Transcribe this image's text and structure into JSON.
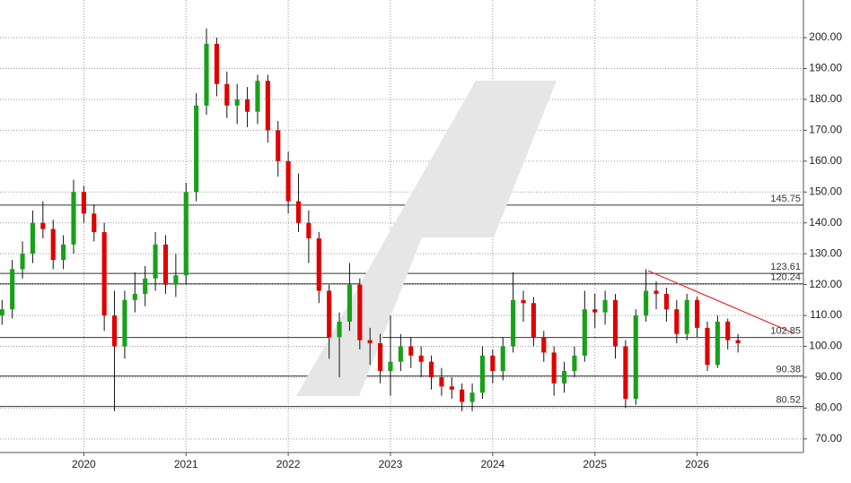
{
  "chart_data": {
    "type": "candlestick",
    "xlim": [
      2019.18,
      2027.04
    ],
    "xticks": [
      2020,
      2021,
      2022,
      2023,
      2024,
      2025,
      2026
    ],
    "ylim": [
      65.6,
      212.2
    ],
    "yticks": [
      {
        "value": 70,
        "label": "70.00"
      },
      {
        "value": 80,
        "label": "80.00"
      },
      {
        "value": 90,
        "label": "90.00"
      },
      {
        "value": 100,
        "label": "100.00"
      },
      {
        "value": 110,
        "label": "110.00"
      },
      {
        "value": 120,
        "label": "120.00"
      },
      {
        "value": 130,
        "label": "130.00"
      },
      {
        "value": 140,
        "label": "140.00"
      },
      {
        "value": 150,
        "label": "150.00"
      },
      {
        "value": 160,
        "label": "160.00"
      },
      {
        "value": 170,
        "label": "170.00"
      },
      {
        "value": 180,
        "label": "180.00"
      },
      {
        "value": 190,
        "label": "190.00"
      },
      {
        "value": 200,
        "label": "200.00"
      }
    ],
    "grid": true,
    "up_color": "#19a019",
    "down_color": "#e00000",
    "x": [
      2019.2,
      2019.3,
      2019.4,
      2019.5,
      2019.6,
      2019.7,
      2019.8,
      2019.9,
      2020.0,
      2020.1,
      2020.2,
      2020.3,
      2020.4,
      2020.5,
      2020.6,
      2020.7,
      2020.8,
      2020.9,
      2021.0,
      2021.1,
      2021.2,
      2021.3,
      2021.4,
      2021.5,
      2021.6,
      2021.7,
      2021.8,
      2021.9,
      2022.0,
      2022.1,
      2022.2,
      2022.3,
      2022.4,
      2022.5,
      2022.6,
      2022.7,
      2022.8,
      2022.9,
      2023.0,
      2023.1,
      2023.2,
      2023.3,
      2023.4,
      2023.5,
      2023.6,
      2023.7,
      2023.8,
      2023.9,
      2024.0,
      2024.1,
      2024.2,
      2024.3,
      2024.4,
      2024.5,
      2024.6,
      2024.7,
      2024.8,
      2024.9,
      2025.0,
      2025.1,
      2025.2,
      2025.3,
      2025.4,
      2025.5,
      2025.6,
      2025.7,
      2025.8,
      2025.9,
      2026.0,
      2026.1,
      2026.2,
      2026.3,
      2026.4
    ],
    "open": [
      110,
      112,
      125,
      130,
      140,
      138,
      128,
      133,
      150,
      143,
      137,
      110,
      100,
      115,
      117,
      122,
      133,
      120,
      123,
      150,
      178,
      198,
      185,
      178,
      180,
      176,
      186,
      170,
      160,
      147,
      140,
      135,
      118,
      103,
      108,
      120,
      102,
      101,
      92,
      95,
      100,
      97,
      95,
      90,
      87,
      86,
      82,
      85,
      97,
      92,
      100,
      115,
      114,
      103,
      98,
      88,
      92,
      97,
      112,
      111,
      115,
      100,
      83,
      110,
      118,
      117,
      112,
      104,
      115,
      106,
      94,
      108,
      102
    ],
    "high": [
      115,
      128,
      134,
      144,
      147,
      141,
      136,
      154,
      152,
      146,
      140,
      118,
      118,
      124,
      126,
      137,
      136,
      130,
      153,
      182,
      203,
      200,
      189,
      185,
      184,
      188,
      188,
      173,
      163,
      156,
      144,
      137,
      120,
      111,
      127,
      122,
      106,
      104,
      110,
      104,
      103,
      100,
      97,
      93,
      90,
      88,
      88,
      100,
      99,
      103,
      124,
      118,
      116,
      105,
      100,
      95,
      100,
      118,
      117,
      118,
      117,
      102,
      112,
      125,
      121,
      119,
      115,
      117,
      116,
      108,
      110,
      109,
      104
    ],
    "low": [
      107,
      109,
      122,
      127,
      135,
      125,
      125,
      130,
      140,
      134,
      105,
      79,
      96,
      111,
      113,
      118,
      117,
      116,
      120,
      147,
      175,
      181,
      174,
      172,
      171,
      172,
      166,
      155,
      143,
      137,
      127,
      114,
      96,
      90,
      105,
      99,
      94,
      88,
      84,
      92,
      93,
      90,
      86,
      84,
      83,
      79,
      79,
      83,
      88,
      89,
      98,
      108,
      100,
      95,
      84,
      85,
      90,
      95,
      106,
      107,
      96,
      80,
      81,
      108,
      112,
      108,
      101,
      102,
      103,
      92,
      93,
      99,
      98
    ],
    "close": [
      112,
      125,
      130,
      140,
      138,
      128,
      133,
      150,
      143,
      137,
      110,
      100,
      115,
      117,
      122,
      133,
      120,
      123,
      150,
      178,
      198,
      185,
      178,
      180,
      176,
      186,
      170,
      160,
      147,
      140,
      135,
      118,
      103,
      108,
      120,
      102,
      101,
      92,
      95,
      100,
      97,
      95,
      90,
      87,
      86,
      82,
      85,
      97,
      92,
      100,
      115,
      114,
      103,
      98,
      88,
      92,
      97,
      112,
      111,
      115,
      100,
      83,
      110,
      118,
      117,
      112,
      104,
      115,
      106,
      94,
      108,
      102,
      101
    ],
    "levels": [
      145.75,
      123.61,
      120.24,
      102.85,
      90.38,
      80.52
    ],
    "trend_line": {
      "x": [
        2025.52,
        2026.95
      ],
      "y": [
        124.5,
        104.2
      ],
      "color": "#e83030"
    }
  }
}
